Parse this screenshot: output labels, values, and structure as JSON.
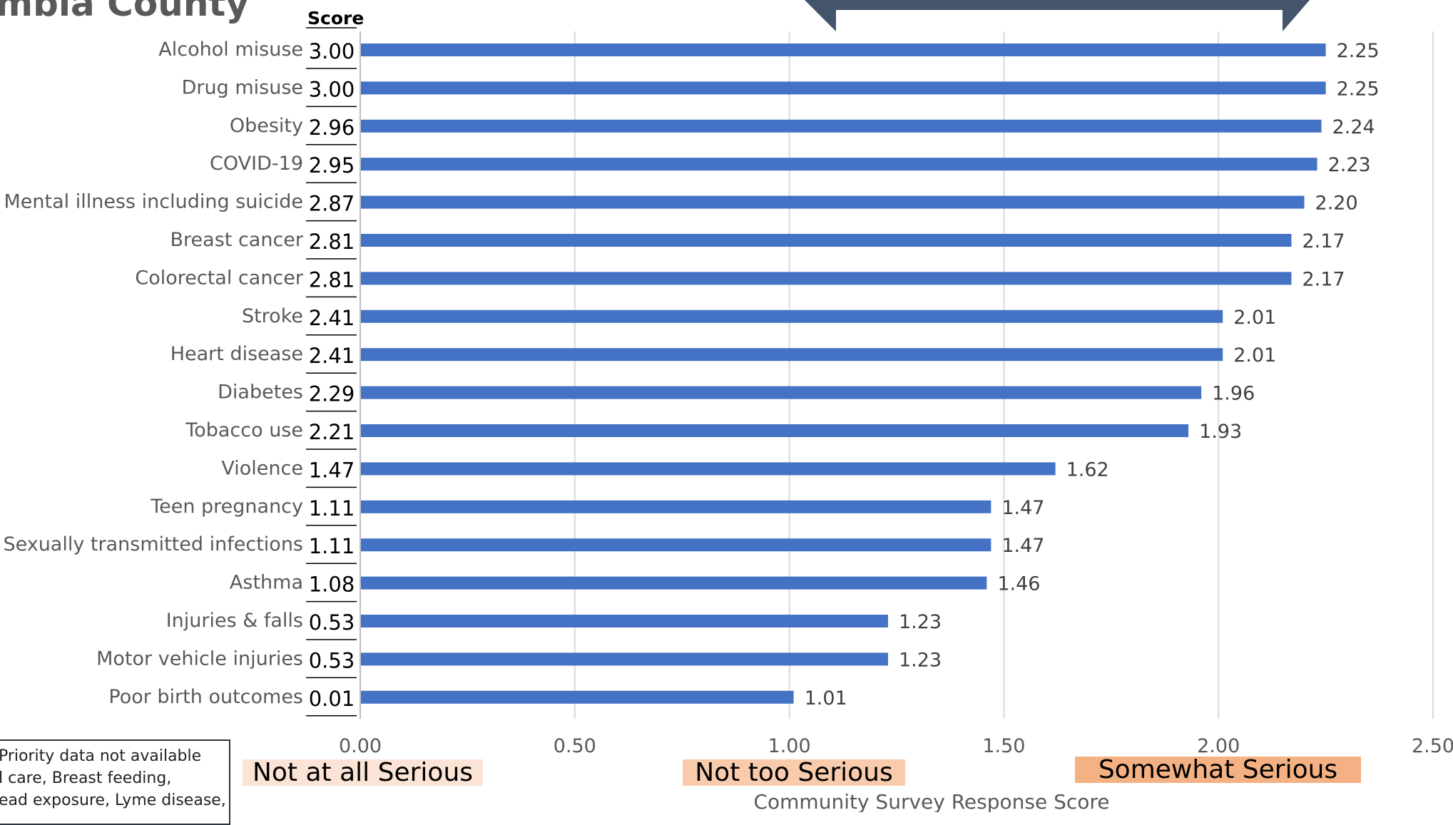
{
  "header": {
    "title_fragment": "mbia County",
    "score_header": "Score"
  },
  "chart_data": {
    "type": "bar",
    "orientation": "horizontal",
    "categories": [
      "Alcohol misuse",
      "Drug misuse",
      "Obesity",
      "COVID-19",
      "Mental illness including suicide",
      "Breast cancer",
      "Colorectal cancer",
      "Stroke",
      "Heart disease",
      "Diabetes",
      "Tobacco use",
      "Violence",
      "Teen pregnancy",
      "Sexually transmitted infections",
      "Asthma",
      "Injuries & falls",
      "Motor vehicle injuries",
      "Poor birth outcomes"
    ],
    "scores": [
      "3.00",
      "3.00",
      "2.96",
      "2.95",
      "2.87",
      "2.81",
      "2.81",
      "2.41",
      "2.41",
      "2.29",
      "2.21",
      "1.47",
      "1.11",
      "1.11",
      "1.08",
      "0.53",
      "0.53",
      "0.01"
    ],
    "values": [
      2.25,
      2.25,
      2.24,
      2.23,
      2.2,
      2.17,
      2.17,
      2.01,
      2.01,
      1.96,
      1.93,
      1.62,
      1.47,
      1.47,
      1.46,
      1.23,
      1.23,
      1.01
    ],
    "value_labels": [
      "2.25",
      "2.25",
      "2.24",
      "2.23",
      "2.20",
      "2.17",
      "2.17",
      "2.01",
      "2.01",
      "1.96",
      "1.93",
      "1.62",
      "1.47",
      "1.47",
      "1.46",
      "1.23",
      "1.23",
      "1.01"
    ],
    "xlim": [
      0,
      2.5
    ],
    "xticks": [
      0,
      0.5,
      1.0,
      1.5,
      2.0,
      2.5
    ],
    "xtick_labels": [
      "0.00",
      "0.50",
      "1.00",
      "1.50",
      "2.00",
      "2.50"
    ],
    "xlabel": "Community Survey Response Score",
    "grid": "vertical",
    "bar_color": "#4472c4",
    "scale_labels": [
      {
        "text": "Not at all Serious",
        "at": 0.0,
        "color": "#fbe4d5"
      },
      {
        "text": "Not too Serious",
        "at": 1.0,
        "color": "#f8cbad"
      },
      {
        "text": "Somewhat Serious",
        "at": 2.0,
        "color": "#f4b183"
      }
    ]
  },
  "note": {
    "lines": [
      "Priority data not available",
      "l care, Breast feeding,",
      "ead exposure, Lyme disease,"
    ]
  },
  "colors": {
    "bracket": "#44546a",
    "title_text": "#595959"
  }
}
